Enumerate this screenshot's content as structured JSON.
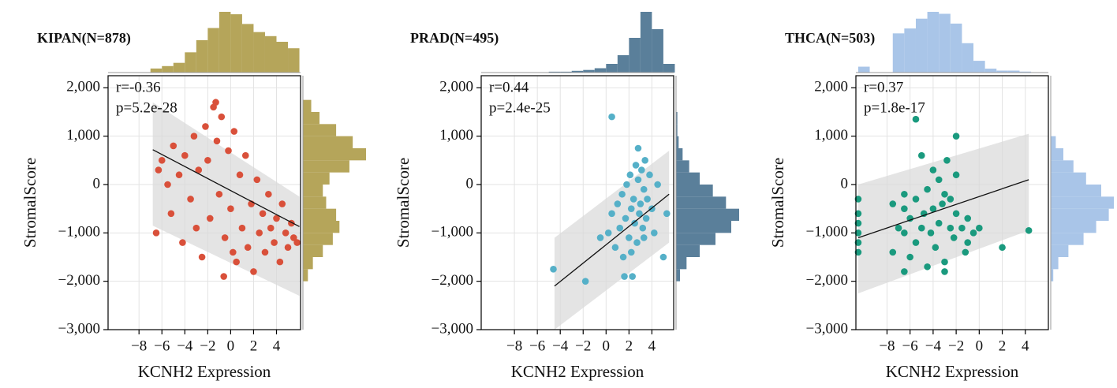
{
  "chart_data": [
    {
      "type": "scatter",
      "title": "KIPAN(N=878)",
      "annotations": [
        "r=-0.36",
        "p=5.2e-28"
      ],
      "xlabel": "KCNH2 Expression",
      "ylabel": "StromalScore",
      "color": "#d9503a",
      "grid": true,
      "xlim": [
        -10.7,
        6.1
      ],
      "ylim": [
        -3000,
        2250
      ],
      "xticks": [
        {
          "value": -8,
          "label": "−8"
        },
        {
          "value": -6,
          "label": "−6"
        },
        {
          "value": -4,
          "label": "−4"
        },
        {
          "value": -2,
          "label": "−2"
        },
        0,
        2,
        4
      ],
      "yticks": [
        {
          "value": -3000,
          "label": "−3,000"
        },
        {
          "value": -2000,
          "label": "−2,000"
        },
        {
          "value": -1000,
          "label": "−1,000"
        },
        0,
        {
          "value": 1000,
          "label": "1,000"
        },
        {
          "value": 2000,
          "label": "2,000"
        }
      ],
      "x": [
        -6.5,
        -6.3,
        -6.0,
        -5.5,
        -5.2,
        -5.0,
        -4.5,
        -4.2,
        -4.0,
        -3.5,
        -3.2,
        -3.0,
        -2.8,
        -2.5,
        -2.2,
        -2.0,
        -1.8,
        -1.5,
        -1.2,
        -1.0,
        -0.8,
        -0.5,
        -0.2,
        0,
        0.3,
        0.5,
        0.8,
        1.0,
        1.3,
        1.5,
        1.8,
        2.0,
        2.3,
        2.5,
        2.8,
        3.0,
        3.3,
        3.5,
        3.8,
        4.0,
        4.3,
        4.5,
        4.8,
        5.0,
        5.3,
        5.5,
        5.8,
        -1.3,
        -0.6,
        0.2
      ],
      "y": [
        -1000,
        300,
        500,
        0,
        -600,
        800,
        200,
        -1200,
        600,
        -300,
        1000,
        -900,
        300,
        -1500,
        1200,
        500,
        -700,
        1600,
        900,
        -200,
        1400,
        -1100,
        700,
        -500,
        1100,
        -1600,
        200,
        -900,
        600,
        -1300,
        -400,
        -1800,
        100,
        -1000,
        -600,
        -1400,
        -200,
        -900,
        -1200,
        -700,
        -1600,
        -400,
        -1000,
        -1300,
        -800,
        -1100,
        -1200,
        1700,
        -1900,
        -1400
      ],
      "fit": {
        "x": [
          -6.8,
          6
        ],
        "y": [
          720,
          -870
        ],
        "lower": [
          -850,
          -2300
        ],
        "upper": [
          1700,
          -250
        ]
      },
      "top_hist": {
        "color": "#b5a55a",
        "bins": [
          -7,
          -6,
          -5,
          -4,
          -3,
          -2,
          -1,
          0,
          1,
          2,
          3,
          4,
          5,
          6
        ],
        "counts": [
          5,
          8,
          12,
          25,
          40,
          55,
          75,
          72,
          60,
          50,
          45,
          38,
          30
        ]
      },
      "right_hist": {
        "color": "#b5a55a",
        "bins": [
          -2000,
          -1750,
          -1500,
          -1250,
          -1000,
          -750,
          -500,
          -250,
          0,
          250,
          500,
          750,
          1000,
          1250,
          1500,
          1750
        ],
        "counts": [
          3,
          6,
          12,
          18,
          22,
          20,
          14,
          12,
          16,
          28,
          38,
          30,
          20,
          10,
          5
        ]
      }
    },
    {
      "type": "scatter",
      "title": "PRAD(N=495)",
      "annotations": [
        "r=0.44",
        "p=2.4e-25"
      ],
      "xlabel": "KCNH2 Expression",
      "ylabel": "StromalScore",
      "color": "#55b0c8",
      "grid": true,
      "xlim": [
        -10.9,
        5.9
      ],
      "ylim": [
        -3000,
        2250
      ],
      "xticks": [
        {
          "value": -8,
          "label": "−8"
        },
        {
          "value": -6,
          "label": "−6"
        },
        {
          "value": -4,
          "label": "−4"
        },
        {
          "value": -2,
          "label": "−2"
        },
        0,
        2,
        4
      ],
      "yticks": [
        {
          "value": -3000,
          "label": "−3,000"
        },
        {
          "value": -2000,
          "label": "−2,000"
        },
        {
          "value": -1000,
          "label": "−1,000"
        },
        0,
        {
          "value": 1000,
          "label": "1,000"
        },
        {
          "value": 2000,
          "label": "2,000"
        }
      ],
      "x": [
        -4.6,
        -1.8,
        -0.5,
        0.2,
        0.5,
        0.8,
        1.0,
        1.2,
        1.4,
        1.5,
        1.7,
        1.8,
        2.0,
        2.1,
        2.2,
        2.3,
        2.4,
        2.5,
        2.6,
        2.7,
        2.8,
        2.9,
        3.0,
        3.1,
        3.2,
        3.3,
        3.4,
        3.5,
        3.6,
        3.8,
        4.0,
        4.2,
        4.5,
        5.0,
        5.3,
        0.5,
        1.6,
        2.2,
        2.8,
        3.3
      ],
      "y": [
        -1750,
        -2000,
        -1100,
        -1000,
        -600,
        -1300,
        -400,
        -900,
        -200,
        -1500,
        -700,
        0,
        -1100,
        200,
        -500,
        -1900,
        -300,
        -800,
        400,
        -1200,
        100,
        -600,
        -400,
        300,
        -900,
        -100,
        500,
        -700,
        -300,
        200,
        -500,
        -1000,
        0,
        -1500,
        -600,
        1400,
        -1900,
        -1400,
        750,
        -1100
      ],
      "fit": {
        "x": [
          -4.5,
          5.5
        ],
        "y": [
          -2100,
          -200
        ],
        "lower": [
          -3000,
          -1200
        ],
        "upper": [
          -1100,
          700
        ]
      },
      "top_hist": {
        "color": "#5a7f9a",
        "bins": [
          -5,
          -4,
          -3,
          -2,
          -1,
          0,
          1,
          2,
          3,
          4,
          5,
          6
        ],
        "counts": [
          1,
          1,
          2,
          3,
          5,
          10,
          20,
          40,
          70,
          50,
          10
        ]
      },
      "right_hist": {
        "color": "#5a7f9a",
        "bins": [
          -2000,
          -1750,
          -1500,
          -1250,
          -1000,
          -750,
          -500,
          -250,
          0,
          250,
          500,
          750,
          1000,
          1250,
          1500
        ],
        "counts": [
          3,
          8,
          18,
          30,
          42,
          48,
          38,
          28,
          18,
          10,
          5,
          2,
          1,
          1
        ]
      }
    },
    {
      "type": "scatter",
      "title": "THCA(N=503)",
      "annotations": [
        "r=0.37",
        "p=1.8e-17"
      ],
      "xlabel": "KCNH2 Expression",
      "ylabel": "StromalScore",
      "color": "#1a9a7e",
      "grid": true,
      "xlim": [
        -10.7,
        6.0
      ],
      "ylim": [
        -3000,
        2250
      ],
      "xticks": [
        {
          "value": -8,
          "label": "−8"
        },
        {
          "value": -6,
          "label": "−6"
        },
        {
          "value": -4,
          "label": "−4"
        },
        {
          "value": -2,
          "label": "−2"
        },
        0,
        2,
        4
      ],
      "yticks": [
        {
          "value": -3000,
          "label": "−3,000"
        },
        {
          "value": -2000,
          "label": "−2,000"
        },
        {
          "value": -1000,
          "label": "−1,000"
        },
        0,
        {
          "value": 1000,
          "label": "1,000"
        },
        {
          "value": 2000,
          "label": "2,000"
        }
      ],
      "x": [
        -10.5,
        -10.5,
        -10.5,
        -10.5,
        -10.5,
        -10.5,
        -7.5,
        -7.5,
        -7.0,
        -6.5,
        -6.5,
        -6.5,
        -6.5,
        -6.0,
        -6.0,
        -5.5,
        -5.5,
        -5.0,
        -5.0,
        -4.8,
        -4.5,
        -4.5,
        -4.2,
        -4.0,
        -4.0,
        -3.8,
        -3.5,
        -3.5,
        -3.2,
        -3.0,
        -3.0,
        -2.8,
        -2.5,
        -2.5,
        -2.2,
        -2.0,
        -2.0,
        -1.5,
        -1.2,
        -1.0,
        -0.5,
        0,
        2.0,
        4.3,
        -5.5,
        -3.0,
        -2.0,
        -1.0
      ],
      "y": [
        -300,
        -800,
        -1000,
        -1200,
        -1400,
        -600,
        -1400,
        -400,
        -900,
        -1800,
        -1000,
        -500,
        -200,
        -1500,
        -700,
        -1200,
        -300,
        -900,
        600,
        -600,
        -1700,
        -100,
        -1000,
        -500,
        300,
        -1300,
        -800,
        100,
        -400,
        -1600,
        -200,
        500,
        -900,
        -300,
        -1100,
        -600,
        200,
        -900,
        -1400,
        -700,
        -1000,
        -900,
        -1300,
        -950,
        1350,
        -1800,
        1000,
        -1200
      ],
      "fit": {
        "x": [
          -10.5,
          4.3
        ],
        "y": [
          -1100,
          100
        ],
        "lower": [
          -2250,
          -950
        ],
        "upper": [
          0,
          1050
        ]
      },
      "top_hist": {
        "color": "#a9c5e8",
        "bins": [
          -10.5,
          -9.5,
          -8.5,
          -7.5,
          -6.5,
          -5.5,
          -4.5,
          -3.5,
          -2.5,
          -1.5,
          -0.5,
          0.5,
          1.5,
          2.5,
          3.5,
          4.5
        ],
        "counts": [
          6,
          0,
          0,
          40,
          45,
          55,
          62,
          60,
          50,
          30,
          12,
          4,
          2,
          2,
          1
        ]
      },
      "right_hist": {
        "color": "#a9c5e8",
        "bins": [
          -2000,
          -1750,
          -1500,
          -1250,
          -1000,
          -750,
          -500,
          -250,
          0,
          250,
          500,
          750,
          1000
        ],
        "counts": [
          2,
          6,
          14,
          26,
          36,
          46,
          50,
          40,
          28,
          18,
          10,
          4
        ]
      }
    }
  ]
}
